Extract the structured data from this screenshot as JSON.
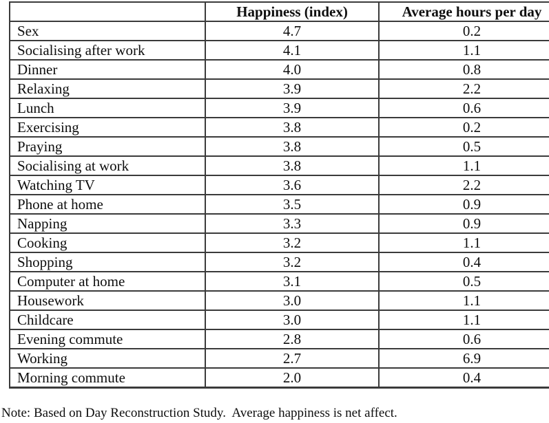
{
  "chart_data": {
    "type": "table",
    "columns": [
      "",
      "Happiness (index)",
      "Average hours per day"
    ],
    "rows": [
      {
        "activity": "Sex",
        "happiness": "4.7",
        "hours": "0.2"
      },
      {
        "activity": "Socialising after work",
        "happiness": "4.1",
        "hours": "1.1"
      },
      {
        "activity": "Dinner",
        "happiness": "4.0",
        "hours": "0.8"
      },
      {
        "activity": "Relaxing",
        "happiness": "3.9",
        "hours": "2.2"
      },
      {
        "activity": "Lunch",
        "happiness": "3.9",
        "hours": "0.6"
      },
      {
        "activity": "Exercising",
        "happiness": "3.8",
        "hours": "0.2"
      },
      {
        "activity": "Praying",
        "happiness": "3.8",
        "hours": "0.5"
      },
      {
        "activity": "Socialising at work",
        "happiness": "3.8",
        "hours": "1.1"
      },
      {
        "activity": "Watching TV",
        "happiness": "3.6",
        "hours": "2.2"
      },
      {
        "activity": "Phone at home",
        "happiness": "3.5",
        "hours": "0.9"
      },
      {
        "activity": "Napping",
        "happiness": "3.3",
        "hours": "0.9"
      },
      {
        "activity": "Cooking",
        "happiness": "3.2",
        "hours": "1.1"
      },
      {
        "activity": "Shopping",
        "happiness": "3.2",
        "hours": "0.4"
      },
      {
        "activity": "Computer at home",
        "happiness": "3.1",
        "hours": "0.5"
      },
      {
        "activity": "Housework",
        "happiness": "3.0",
        "hours": "1.1"
      },
      {
        "activity": "Childcare",
        "happiness": "3.0",
        "hours": "1.1"
      },
      {
        "activity": "Evening commute",
        "happiness": "2.8",
        "hours": "0.6"
      },
      {
        "activity": "Working",
        "happiness": "2.7",
        "hours": "6.9"
      },
      {
        "activity": "Morning commute",
        "happiness": "2.0",
        "hours": "0.4"
      }
    ]
  },
  "note": "Note: Based on Day Reconstruction Study.  Average happiness is net affect.",
  "colors": {
    "border": "#3a3a3a",
    "text": "#0e0e0e",
    "background": "#ffffff"
  }
}
